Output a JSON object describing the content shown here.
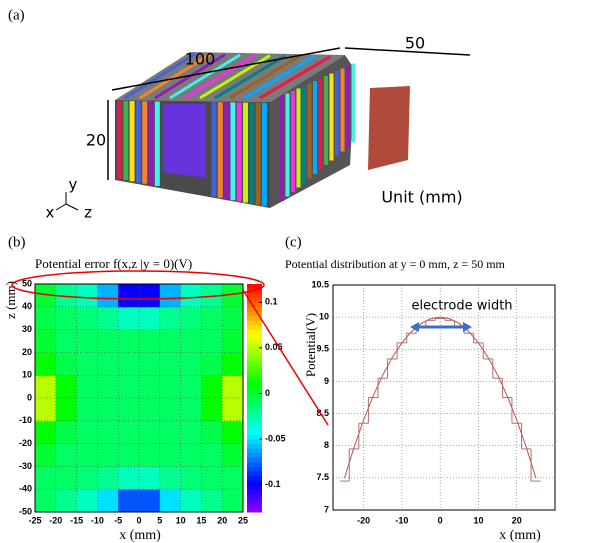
{
  "panel_a": {
    "label": "(a)",
    "dims": [
      "100",
      "50",
      "20"
    ],
    "axes": [
      "x",
      "y",
      "z"
    ],
    "unit": "Unit (mm)"
  },
  "chart_data": [
    {
      "type": "heatmap",
      "label": "(b)",
      "title": "Potential error f(x,z |y = 0)(V)",
      "x_label": "x (mm)",
      "y_label": "z (mm)",
      "xbins": [
        -25,
        -20,
        -15,
        -10,
        -5,
        0,
        5,
        10,
        15,
        20,
        25
      ],
      "ybins": [
        -50,
        -40,
        -30,
        -20,
        -10,
        0,
        10,
        20,
        30,
        40,
        50
      ],
      "values": [
        [
          -0.01,
          -0.02,
          -0.03,
          -0.05,
          -0.08,
          -0.08,
          -0.05,
          -0.03,
          -0.02,
          -0.01
        ],
        [
          -0.01,
          -0.01,
          -0.015,
          -0.02,
          -0.03,
          -0.03,
          -0.02,
          -0.015,
          -0.01,
          -0.01
        ],
        [
          0.0,
          -0.01,
          -0.01,
          -0.01,
          -0.01,
          -0.01,
          -0.01,
          -0.01,
          -0.01,
          0.0
        ],
        [
          0.01,
          -0.005,
          -0.01,
          -0.01,
          -0.01,
          -0.01,
          -0.01,
          -0.01,
          -0.005,
          0.01
        ],
        [
          0.05,
          0.01,
          -0.01,
          -0.01,
          -0.01,
          -0.01,
          -0.01,
          -0.01,
          0.01,
          0.05
        ],
        [
          0.05,
          0.01,
          -0.01,
          -0.01,
          -0.01,
          -0.01,
          -0.01,
          -0.01,
          0.01,
          0.05
        ],
        [
          0.01,
          -0.005,
          -0.01,
          -0.01,
          -0.01,
          -0.01,
          -0.01,
          -0.01,
          -0.005,
          0.01
        ],
        [
          0.0,
          -0.01,
          -0.01,
          -0.01,
          -0.01,
          -0.01,
          -0.01,
          -0.01,
          -0.01,
          0.0
        ],
        [
          -0.005,
          -0.01,
          -0.015,
          -0.02,
          -0.03,
          -0.03,
          -0.02,
          -0.015,
          -0.01,
          -0.005
        ],
        [
          0.0,
          -0.02,
          -0.03,
          -0.06,
          -0.1,
          -0.1,
          -0.06,
          -0.03,
          -0.02,
          0.0
        ]
      ],
      "xlim": [
        -25,
        25
      ],
      "ylim": [
        -50,
        50
      ],
      "clim": [
        -0.13,
        0.12
      ],
      "xticks": [
        -25,
        -20,
        -15,
        -10,
        -5,
        0,
        5,
        10,
        15,
        20,
        25
      ],
      "yticks": [
        -50,
        -40,
        -30,
        -20,
        -10,
        0,
        10,
        20,
        30,
        40,
        50
      ],
      "cticks": [
        -0.1,
        -0.05,
        0,
        0.05,
        0.1
      ],
      "grid": true
    },
    {
      "type": "line",
      "label": "(c)",
      "title": "Potential distribution at y = 0 mm, z = 50 mm",
      "x_label": "x (mm)",
      "y_label": "Potential(V)",
      "x": [
        -25,
        -22.5,
        -20,
        -17.5,
        -15,
        -12.5,
        -10,
        -7.5,
        -5,
        -2.5,
        0,
        2.5,
        5,
        7.5,
        10,
        12.5,
        15,
        17.5,
        20,
        22.5,
        25
      ],
      "series": [
        {
          "color": "#c0504d",
          "values": [
            7.5,
            7.975,
            8.4,
            8.775,
            9.1,
            9.375,
            9.6,
            9.775,
            9.9,
            9.975,
            10,
            9.975,
            9.9,
            9.775,
            9.6,
            9.375,
            9.1,
            8.775,
            8.4,
            7.975,
            7.5
          ]
        },
        {
          "color": "#b07070",
          "step": true,
          "values": [
            7.45,
            7.95,
            8.35,
            8.75,
            9.05,
            9.35,
            9.6,
            9.75,
            9.85,
            9.95,
            9.98,
            9.95,
            9.85,
            9.75,
            9.6,
            9.35,
            9.05,
            8.75,
            8.35,
            7.95,
            7.45
          ]
        }
      ],
      "xlim": [
        -28,
        30
      ],
      "ylim": [
        7,
        10.5
      ],
      "xticks": [
        -20,
        -10,
        0,
        10,
        20
      ],
      "yticks": [
        7,
        7.5,
        8,
        8.5,
        9,
        9.5,
        10,
        10.5
      ],
      "grid": true,
      "annotation": "electrode width"
    }
  ]
}
